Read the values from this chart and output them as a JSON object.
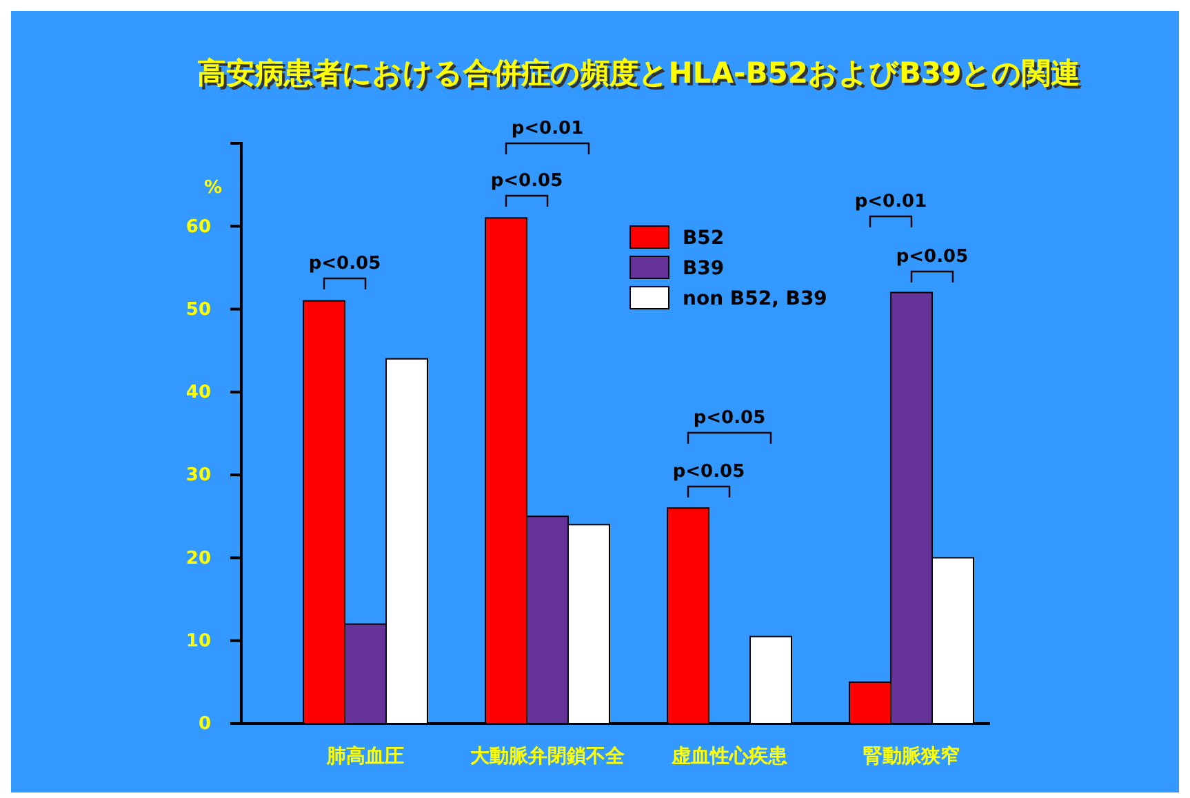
{
  "chart_data": {
    "type": "bar",
    "title": "高安病患者における合併症の頻度とHLA-B52およびB39との関連",
    "ylabel": "%",
    "categories": [
      "肺高血圧",
      "大動脈弁閉鎖不全",
      "虚血性心疾患",
      "腎動脈狭窄"
    ],
    "series": [
      {
        "name": "B52",
        "color": "#ff0000",
        "values": [
          51,
          61,
          26,
          5
        ]
      },
      {
        "name": "B39",
        "color": "#663399",
        "values": [
          12,
          25,
          null,
          52
        ]
      },
      {
        "name": "non B52, B39",
        "color": "#ffffff",
        "values": [
          44,
          24,
          10.5,
          20
        ]
      }
    ],
    "ylim": [
      0,
      70
    ],
    "yticks": [
      0,
      10,
      20,
      30,
      40,
      50,
      60
    ],
    "grid": false,
    "legend": "top right",
    "annotations": [
      "p<0.05",
      "p<0.01",
      "p<0.05",
      "p<0.05",
      "p<0.05",
      "p<0.01",
      "p<0.05"
    ]
  }
}
